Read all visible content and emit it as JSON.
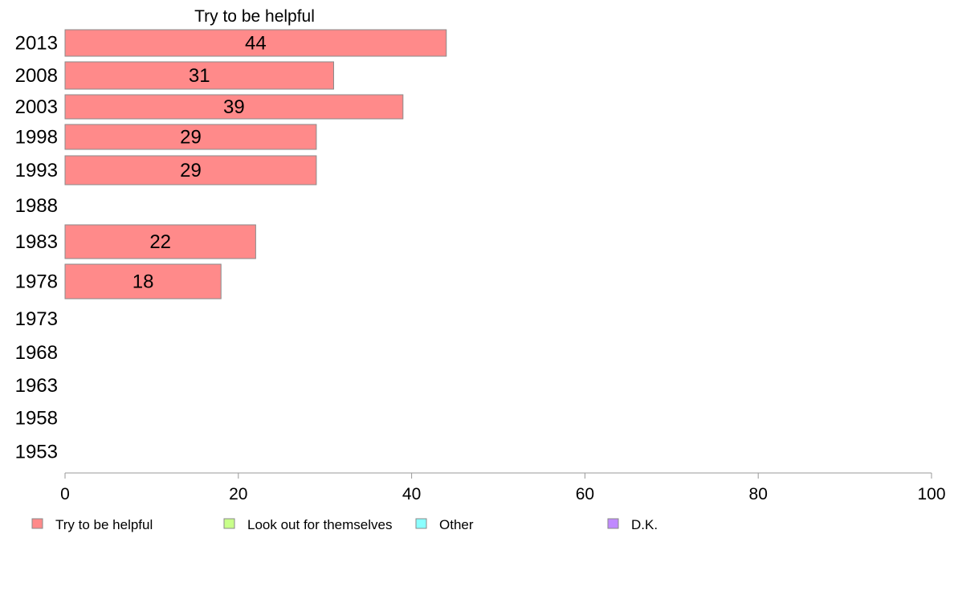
{
  "chart_data": {
    "type": "bar",
    "orientation": "horizontal",
    "title": "Try to be helpful",
    "categories": [
      "2013",
      "2008",
      "2003",
      "1998",
      "1993",
      "1988",
      "1983",
      "1978",
      "1973",
      "1968",
      "1963",
      "1958",
      "1953"
    ],
    "series": [
      {
        "name": "Try to be helpful",
        "color": "#ff8a8a",
        "values": [
          44,
          31,
          39,
          29,
          29,
          null,
          22,
          18,
          null,
          null,
          null,
          null,
          null
        ]
      }
    ],
    "xlim": [
      0,
      100
    ],
    "xticks": [
      0,
      20,
      40,
      60,
      80,
      100
    ],
    "grid": false,
    "legend": {
      "placement": "bottom",
      "entries": [
        {
          "label": "Try to be helpful",
          "color": "#ff8a8a"
        },
        {
          "label": "Look out for themselves",
          "color": "#c8ff8a"
        },
        {
          "label": "Other",
          "color": "#8affff"
        },
        {
          "label": "D.K.",
          "color": "#c08aff"
        }
      ]
    }
  }
}
